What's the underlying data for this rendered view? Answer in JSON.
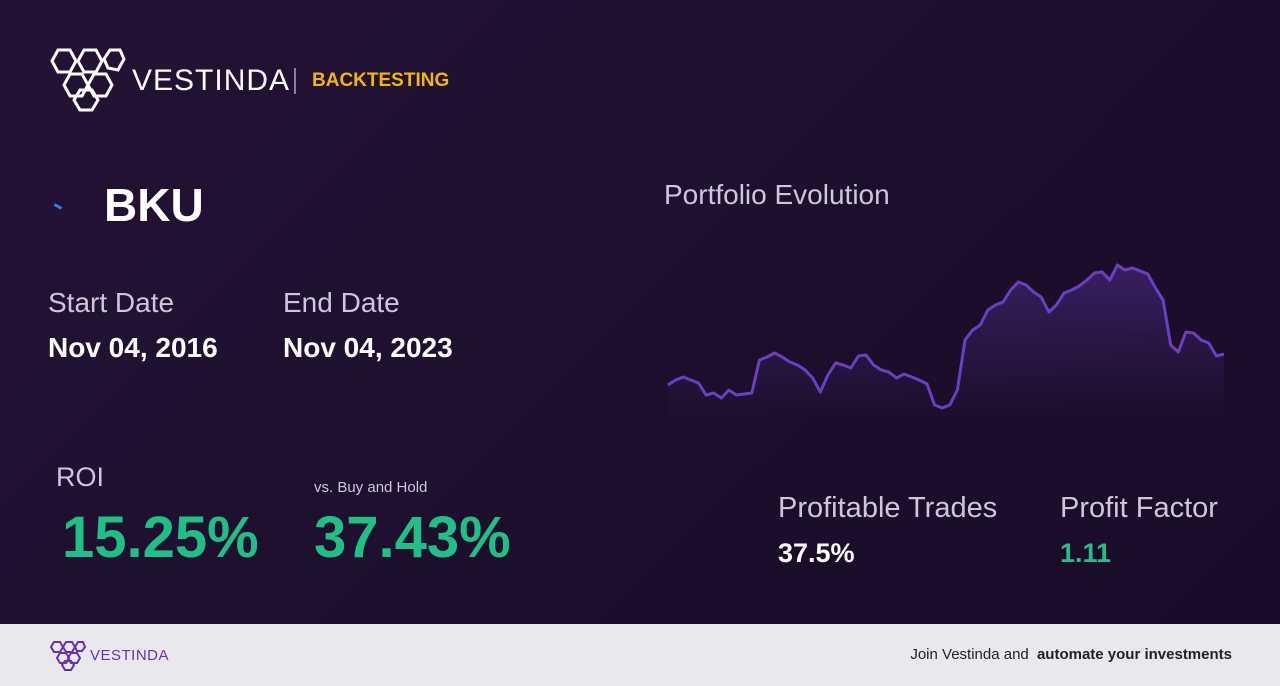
{
  "header": {
    "brand": "VESTINDA",
    "section": "BACKTESTING"
  },
  "ticker": "BKU",
  "dates": {
    "start_label": "Start Date",
    "start": "Nov 04, 2016",
    "end_label": "End Date",
    "end": "Nov 04, 2023"
  },
  "roi": {
    "label": "ROI",
    "value": "15.25%",
    "vs_label": "vs. Buy and Hold",
    "vs_value": "37.43%"
  },
  "stats": {
    "profitable_label": "Profitable Trades",
    "profitable": "37.5%",
    "factor_label": "Profit Factor",
    "factor": "1.11"
  },
  "chart_data": {
    "type": "line",
    "title": "Portfolio Evolution",
    "color": "#6a3fc1",
    "values": [
      35,
      40,
      43,
      40,
      37,
      25,
      27,
      22,
      30,
      25,
      26,
      27,
      60,
      63,
      67,
      63,
      58,
      55,
      50,
      42,
      28,
      45,
      57,
      55,
      52,
      64,
      65,
      55,
      50,
      48,
      42,
      46,
      43,
      40,
      36,
      15,
      12,
      15,
      30,
      80,
      90,
      95,
      110,
      115,
      118,
      130,
      138,
      135,
      128,
      123,
      108,
      115,
      127,
      130,
      134,
      140,
      147,
      148,
      140,
      155,
      150,
      152,
      149,
      146,
      132,
      120,
      75,
      68,
      88,
      87,
      80,
      77,
      64,
      66
    ]
  },
  "footer": {
    "brand": "VESTINDA",
    "cta_text": "Join Vestinda and",
    "cta_bold": "automate your investments"
  }
}
